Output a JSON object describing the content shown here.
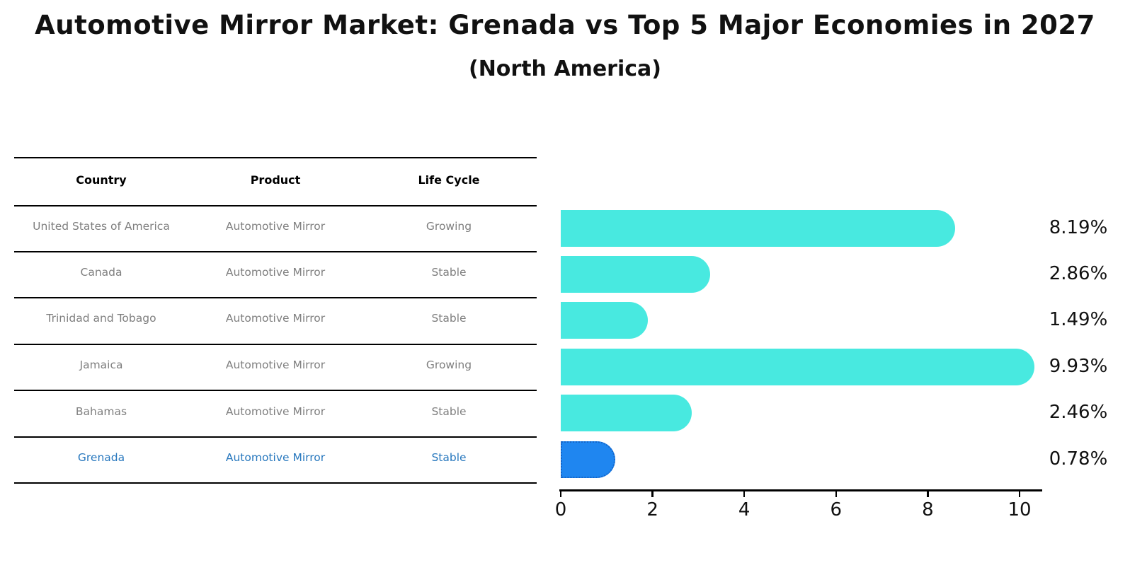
{
  "title": "Automotive Mirror Market: Grenada vs Top 5 Major Economies in 2027",
  "subtitle": "(North America)",
  "table": {
    "headers": [
      "Country",
      "Product",
      "Life Cycle"
    ],
    "rows": [
      {
        "country": "United States of America",
        "product": "Automotive Mirror",
        "life_cycle": "Growing",
        "highlighted": false
      },
      {
        "country": "Canada",
        "product": "Automotive Mirror",
        "life_cycle": "Stable",
        "highlighted": false
      },
      {
        "country": "Trinidad and Tobago",
        "product": "Automotive Mirror",
        "life_cycle": "Stable",
        "highlighted": false
      },
      {
        "country": "Jamaica",
        "product": "Automotive Mirror",
        "life_cycle": "Growing",
        "highlighted": false
      },
      {
        "country": "Bahamas",
        "product": "Automotive Mirror",
        "life_cycle": "Stable",
        "highlighted": false
      },
      {
        "country": "Grenada",
        "product": "Automotive Mirror",
        "life_cycle": "Stable",
        "highlighted": true
      }
    ]
  },
  "chart_data": {
    "type": "bar",
    "orientation": "horizontal",
    "title": "Automotive Mirror Market: Grenada vs Top 5 Major Economies in 2027 (North America)",
    "categories": [
      "United States of America",
      "Canada",
      "Trinidad and Tobago",
      "Jamaica",
      "Bahamas",
      "Grenada"
    ],
    "values": [
      8.19,
      2.86,
      1.49,
      9.93,
      2.46,
      0.78
    ],
    "value_labels": [
      "8.19%",
      "2.86%",
      "1.49%",
      "9.93%",
      "2.46%",
      "0.78%"
    ],
    "x_ticks": [
      0,
      2,
      4,
      6,
      8,
      10
    ],
    "xlim": [
      0,
      10.5
    ],
    "grid": false,
    "legend": false,
    "bar_color": "#48e9e0",
    "highlight_index": 5,
    "highlight_color": "#1f86f0",
    "highlight_border_color": "#1565c8"
  },
  "colors": {
    "highlight_text": "#2878be",
    "row_text": "#7f7f7f",
    "axis_color": "#000000"
  }
}
